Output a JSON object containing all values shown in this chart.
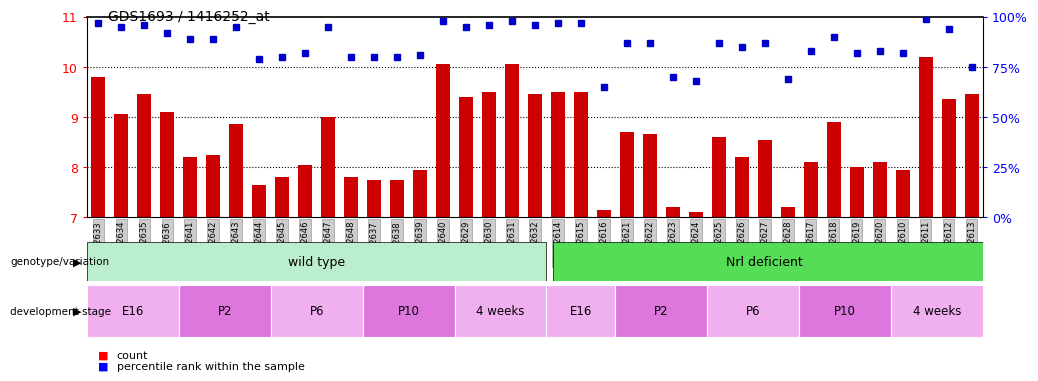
{
  "title": "GDS1693 / 1416252_at",
  "samples": [
    "GSM92633",
    "GSM92634",
    "GSM92635",
    "GSM92636",
    "GSM92641",
    "GSM92642",
    "GSM92643",
    "GSM92644",
    "GSM92645",
    "GSM92646",
    "GSM92647",
    "GSM92648",
    "GSM92637",
    "GSM92638",
    "GSM92639",
    "GSM92640",
    "GSM92629",
    "GSM92630",
    "GSM92631",
    "GSM92632",
    "GSM92614",
    "GSM92615",
    "GSM92616",
    "GSM92621",
    "GSM92622",
    "GSM92623",
    "GSM92624",
    "GSM92625",
    "GSM92626",
    "GSM92627",
    "GSM92628",
    "GSM92617",
    "GSM92618",
    "GSM92619",
    "GSM92620",
    "GSM92610",
    "GSM92611",
    "GSM92612",
    "GSM92613"
  ],
  "counts": [
    9.8,
    9.05,
    9.45,
    9.1,
    8.2,
    8.25,
    8.85,
    7.65,
    7.8,
    8.05,
    9.0,
    7.8,
    7.75,
    7.75,
    7.95,
    10.05,
    9.4,
    9.5,
    10.05,
    9.45,
    9.5,
    9.5,
    7.15,
    8.7,
    8.65,
    7.2,
    7.1,
    8.6,
    8.2,
    8.55,
    7.2,
    8.1,
    8.9,
    8.0,
    8.1,
    7.95,
    10.2,
    9.35,
    9.45
  ],
  "percentile": [
    97,
    95,
    96,
    92,
    89,
    89,
    95,
    79,
    80,
    82,
    95,
    80,
    80,
    80,
    81,
    98,
    95,
    96,
    98,
    96,
    97,
    97,
    65,
    87,
    87,
    70,
    68,
    87,
    85,
    87,
    69,
    83,
    90,
    82,
    83,
    82,
    99,
    94,
    75
  ],
  "ylim_left": [
    7,
    11
  ],
  "ylim_right": [
    0,
    100
  ],
  "yticks_left": [
    7,
    8,
    9,
    10,
    11
  ],
  "yticks_right": [
    0,
    25,
    50,
    75,
    100
  ],
  "bar_color": "#cc0000",
  "dot_color": "#0000cc",
  "wild_type_color": "#bbeecc",
  "nrl_color": "#55dd55",
  "wild_type_samples": 20,
  "nrl_samples": 19,
  "wild_type_stages": [
    {
      "label": "E16",
      "count": 4
    },
    {
      "label": "P2",
      "count": 4
    },
    {
      "label": "P6",
      "count": 4
    },
    {
      "label": "P10",
      "count": 4
    },
    {
      "label": "4 weeks",
      "count": 4
    }
  ],
  "nrl_stages": [
    {
      "label": "E16",
      "count": 3
    },
    {
      "label": "P2",
      "count": 4
    },
    {
      "label": "P6",
      "count": 4
    },
    {
      "label": "P10",
      "count": 4
    },
    {
      "label": "4 weeks",
      "count": 4
    }
  ],
  "stage_colors": [
    "#f0b0f0",
    "#dd77dd"
  ]
}
